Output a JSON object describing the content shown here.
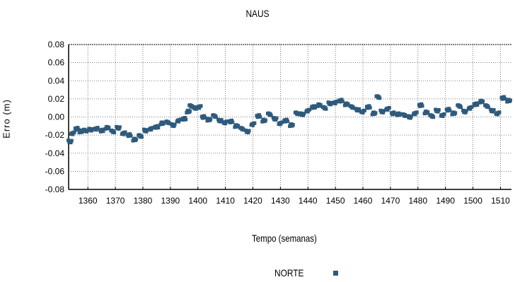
{
  "chart_data": {
    "type": "scatter",
    "title": "NAUS",
    "xlabel": "Tempo (semanas)",
    "ylabel": "Erro (m)",
    "xlim": [
      1353,
      1514
    ],
    "ylim": [
      -0.08,
      0.08
    ],
    "x_ticks": [
      1360,
      1370,
      1380,
      1390,
      1400,
      1410,
      1420,
      1430,
      1440,
      1450,
      1460,
      1470,
      1480,
      1490,
      1500,
      1510
    ],
    "y_ticks": [
      0.08,
      0.06,
      0.04,
      0.02,
      0.0,
      -0.02,
      -0.04,
      -0.06,
      -0.08
    ],
    "y_tick_labels": [
      "0.08",
      "0.06",
      "0.04",
      "0.02",
      "0.00",
      "-0.02",
      "-0.04",
      "-0.06",
      "-0.08"
    ],
    "grid": true,
    "legend_position": "bottom",
    "series": [
      {
        "name": "NORTE",
        "color": "#2e5a7c",
        "marker": "square",
        "x": [
          1353.5,
          1354.5,
          1356,
          1357.5,
          1359,
          1361,
          1363,
          1365,
          1367,
          1369,
          1371,
          1373,
          1375,
          1377,
          1379,
          1381,
          1383,
          1385,
          1387,
          1389,
          1391,
          1393,
          1395,
          1396.5,
          1397.5,
          1399,
          1400.5,
          1402,
          1404,
          1406,
          1408,
          1410,
          1412,
          1414,
          1416,
          1418,
          1420,
          1422,
          1424,
          1426,
          1428,
          1430,
          1432,
          1434,
          1436,
          1438,
          1440,
          1442,
          1444,
          1446,
          1448,
          1450,
          1452,
          1454,
          1456,
          1458,
          1460,
          1462,
          1464,
          1465.5,
          1467,
          1469,
          1471,
          1473,
          1475,
          1477,
          1479,
          1481,
          1483,
          1485,
          1487,
          1489,
          1491,
          1493,
          1495,
          1497,
          1499,
          1501,
          1503,
          1505,
          1507,
          1509,
          1511,
          1513
        ],
        "y": [
          -0.027,
          -0.018,
          -0.013,
          -0.016,
          -0.015,
          -0.014,
          -0.013,
          -0.015,
          -0.012,
          -0.016,
          -0.012,
          -0.018,
          -0.02,
          -0.025,
          -0.021,
          -0.015,
          -0.013,
          -0.011,
          -0.007,
          -0.006,
          -0.009,
          -0.004,
          -0.002,
          0.006,
          0.012,
          0.01,
          0.011,
          0.0,
          -0.003,
          0.001,
          -0.004,
          -0.006,
          -0.005,
          -0.01,
          -0.013,
          -0.016,
          -0.008,
          0.001,
          -0.004,
          0.003,
          -0.002,
          -0.007,
          -0.004,
          -0.009,
          0.004,
          0.003,
          0.007,
          0.011,
          0.013,
          0.01,
          0.015,
          0.016,
          0.018,
          0.014,
          0.011,
          0.008,
          0.006,
          0.011,
          0.004,
          0.022,
          0.006,
          0.009,
          0.004,
          0.003,
          0.002,
          0.0,
          0.004,
          0.013,
          0.005,
          0.001,
          0.007,
          0.002,
          0.008,
          0.004,
          0.012,
          0.006,
          0.01,
          0.014,
          0.017,
          0.012,
          0.007,
          0.004,
          0.021,
          0.018
        ]
      }
    ]
  }
}
